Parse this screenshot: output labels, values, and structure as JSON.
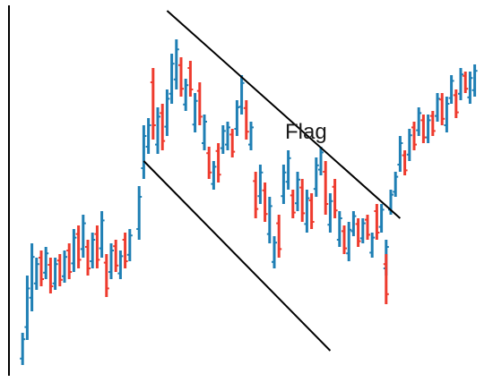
{
  "chart_data": {
    "type": "ohlc",
    "title": "",
    "xlabel": "",
    "ylabel": "",
    "annotations": [
      {
        "text": "Flag"
      }
    ],
    "colors": {
      "up": "#1f7fb4",
      "down": "#ee3b2e",
      "axis": "#000000",
      "trendline": "#000000"
    },
    "grid": false,
    "legend": "none",
    "xlim": [
      0,
      100
    ],
    "ylim": [
      0,
      100
    ],
    "up_bars": [
      {
        "x": 1,
        "low": 3,
        "high": 12
      },
      {
        "x": 2,
        "low": 10,
        "high": 28
      },
      {
        "x": 3,
        "low": 18,
        "high": 37
      },
      {
        "x": 4,
        "low": 24,
        "high": 33
      },
      {
        "x": 6,
        "low": 27,
        "high": 36
      },
      {
        "x": 8,
        "low": 24,
        "high": 33
      },
      {
        "x": 10,
        "low": 26,
        "high": 35
      },
      {
        "x": 12,
        "low": 29,
        "high": 41
      },
      {
        "x": 14,
        "low": 33,
        "high": 45
      },
      {
        "x": 16,
        "low": 30,
        "high": 40
      },
      {
        "x": 18,
        "low": 33,
        "high": 46
      },
      {
        "x": 20,
        "low": 27,
        "high": 37
      },
      {
        "x": 22,
        "low": 27,
        "high": 35
      },
      {
        "x": 24,
        "low": 32,
        "high": 41
      },
      {
        "x": 26,
        "low": 38,
        "high": 53
      },
      {
        "x": 27,
        "low": 55,
        "high": 70
      },
      {
        "x": 28,
        "low": 62,
        "high": 72
      },
      {
        "x": 30,
        "low": 62,
        "high": 75
      },
      {
        "x": 32,
        "low": 67,
        "high": 80
      },
      {
        "x": 33,
        "low": 76,
        "high": 90
      },
      {
        "x": 34,
        "low": 80,
        "high": 94
      },
      {
        "x": 36,
        "low": 74,
        "high": 83
      },
      {
        "x": 38,
        "low": 68,
        "high": 79
      },
      {
        "x": 40,
        "low": 63,
        "high": 73
      },
      {
        "x": 42,
        "low": 52,
        "high": 60
      },
      {
        "x": 44,
        "low": 62,
        "high": 70
      },
      {
        "x": 45,
        "low": 63,
        "high": 71
      },
      {
        "x": 47,
        "low": 67,
        "high": 77
      },
      {
        "x": 48,
        "low": 73,
        "high": 84
      },
      {
        "x": 50,
        "low": 63,
        "high": 71
      },
      {
        "x": 52,
        "low": 48,
        "high": 59
      },
      {
        "x": 54,
        "low": 37,
        "high": 50
      },
      {
        "x": 55,
        "low": 30,
        "high": 39
      },
      {
        "x": 57,
        "low": 48,
        "high": 59
      },
      {
        "x": 58,
        "low": 52,
        "high": 63
      },
      {
        "x": 60,
        "low": 46,
        "high": 57
      },
      {
        "x": 62,
        "low": 40,
        "high": 52
      },
      {
        "x": 64,
        "low": 50,
        "high": 61
      },
      {
        "x": 65,
        "low": 56,
        "high": 64
      },
      {
        "x": 67,
        "low": 40,
        "high": 51
      },
      {
        "x": 69,
        "low": 36,
        "high": 46
      },
      {
        "x": 71,
        "low": 32,
        "high": 43
      },
      {
        "x": 72,
        "low": 39,
        "high": 46
      },
      {
        "x": 74,
        "low": 37,
        "high": 44
      },
      {
        "x": 76,
        "low": 33,
        "high": 40
      },
      {
        "x": 78,
        "low": 40,
        "high": 48
      },
      {
        "x": 79,
        "low": 28,
        "high": 38
      },
      {
        "x": 80,
        "low": 45,
        "high": 52
      },
      {
        "x": 81,
        "low": 50,
        "high": 57
      },
      {
        "x": 82,
        "low": 57,
        "high": 67
      },
      {
        "x": 84,
        "low": 60,
        "high": 69
      },
      {
        "x": 86,
        "low": 67,
        "high": 75
      },
      {
        "x": 88,
        "low": 65,
        "high": 73
      },
      {
        "x": 90,
        "low": 71,
        "high": 79
      },
      {
        "x": 92,
        "low": 68,
        "high": 78
      },
      {
        "x": 93,
        "low": 76,
        "high": 84
      },
      {
        "x": 95,
        "low": 77,
        "high": 86
      },
      {
        "x": 97,
        "low": 76,
        "high": 85
      },
      {
        "x": 98,
        "low": 78,
        "high": 87
      }
    ],
    "down_bars": [
      {
        "x": 5,
        "low": 25,
        "high": 35
      },
      {
        "x": 7,
        "low": 23,
        "high": 33
      },
      {
        "x": 9,
        "low": 25,
        "high": 34
      },
      {
        "x": 11,
        "low": 27,
        "high": 37
      },
      {
        "x": 13,
        "low": 30,
        "high": 42
      },
      {
        "x": 15,
        "low": 28,
        "high": 38
      },
      {
        "x": 17,
        "low": 30,
        "high": 42
      },
      {
        "x": 19,
        "low": 22,
        "high": 34
      },
      {
        "x": 21,
        "low": 29,
        "high": 38
      },
      {
        "x": 23,
        "low": 30,
        "high": 40
      },
      {
        "x": 29,
        "low": 66,
        "high": 86
      },
      {
        "x": 31,
        "low": 63,
        "high": 76
      },
      {
        "x": 35,
        "low": 78,
        "high": 89
      },
      {
        "x": 37,
        "low": 78,
        "high": 88
      },
      {
        "x": 39,
        "low": 70,
        "high": 82
      },
      {
        "x": 41,
        "low": 55,
        "high": 64
      },
      {
        "x": 43,
        "low": 54,
        "high": 65
      },
      {
        "x": 46,
        "low": 61,
        "high": 69
      },
      {
        "x": 49,
        "low": 66,
        "high": 77
      },
      {
        "x": 51,
        "low": 44,
        "high": 57
      },
      {
        "x": 53,
        "low": 43,
        "high": 54
      },
      {
        "x": 56,
        "low": 33,
        "high": 45
      },
      {
        "x": 59,
        "low": 44,
        "high": 52
      },
      {
        "x": 61,
        "low": 43,
        "high": 55
      },
      {
        "x": 63,
        "low": 41,
        "high": 51
      },
      {
        "x": 66,
        "low": 45,
        "high": 60
      },
      {
        "x": 68,
        "low": 44,
        "high": 55
      },
      {
        "x": 70,
        "low": 34,
        "high": 42
      },
      {
        "x": 73,
        "low": 36,
        "high": 44
      },
      {
        "x": 75,
        "low": 38,
        "high": 45
      },
      {
        "x": 77,
        "low": 38,
        "high": 48
      },
      {
        "x": 79,
        "low": 20,
        "high": 34
      },
      {
        "x": 83,
        "low": 56,
        "high": 63
      },
      {
        "x": 85,
        "low": 63,
        "high": 71
      },
      {
        "x": 87,
        "low": 65,
        "high": 73
      },
      {
        "x": 89,
        "low": 67,
        "high": 74
      },
      {
        "x": 91,
        "low": 70,
        "high": 79
      },
      {
        "x": 94,
        "low": 72,
        "high": 80
      },
      {
        "x": 96,
        "low": 79,
        "high": 85
      }
    ],
    "trendlines": [
      {
        "name": "upper",
        "x1": 32,
        "y1": 102,
        "x2": 82,
        "y2": 44
      },
      {
        "name": "lower",
        "x1": 27,
        "y1": 60,
        "x2": 67,
        "y2": 7
      }
    ]
  }
}
